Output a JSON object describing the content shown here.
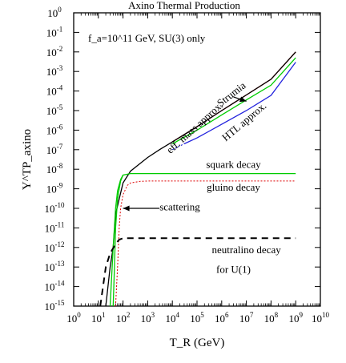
{
  "chart_data": {
    "type": "line",
    "title": "Axino Thermal Production",
    "subtitle": "f_a=10^11 GeV, SU(3) only",
    "xlabel": "T_R (GeV)",
    "ylabel": "Y^TP_axino",
    "xscale": "log",
    "yscale": "log",
    "xlim": [
      1,
      10000000000
    ],
    "ylim": [
      1e-15,
      1
    ],
    "grid": false,
    "x_tick_exponents": [
      0,
      1,
      2,
      3,
      4,
      5,
      6,
      7,
      8,
      9,
      10
    ],
    "y_tick_exponents": [
      0,
      -1,
      -2,
      -3,
      -4,
      -5,
      -6,
      -7,
      -8,
      -9,
      -10,
      -11,
      -12,
      -13,
      -14,
      -15
    ],
    "series": [
      {
        "name": "Strumia",
        "color": "#c00000",
        "style": "solid",
        "x": [
          10000,
          100000,
          1000000,
          10000000,
          100000000,
          1000000000
        ],
        "y": [
          2.5e-07,
          1.5e-06,
          1e-05,
          6.3e-05,
          0.0004,
          0.01
        ]
      },
      {
        "name": "eff. mass approx.",
        "color": "#000000",
        "style": "solid",
        "x": [
          20,
          30,
          40,
          50,
          70,
          100,
          200,
          500,
          1000,
          3000,
          10000,
          100000,
          1000000,
          10000000,
          100000000,
          1000000000
        ],
        "y": [
          1e-15,
          1e-13,
          1e-12,
          5e-11,
          3e-10,
          2e-09,
          8e-09,
          2e-08,
          4e-08,
          1e-07,
          2.5e-07,
          1.5e-06,
          1e-05,
          6.3e-05,
          0.0004,
          0.01
        ]
      },
      {
        "name": "",
        "color": "#00cc00",
        "style": "solid",
        "x": [
          10000,
          100000,
          1000000,
          10000000,
          100000000,
          1000000000
        ],
        "y": [
          2e-07,
          1e-06,
          6e-06,
          3.5e-05,
          0.0002,
          0.005
        ]
      },
      {
        "name": "HTL approx.",
        "color": "#0000cc",
        "style": "dotted",
        "x": [
          10000,
          30000
        ],
        "y": [
          1e-07,
          2e-07
        ]
      },
      {
        "name": "HTL approx.",
        "color": "#2222dd",
        "style": "solid",
        "x": [
          30000,
          100000,
          1000000,
          10000000,
          100000000,
          1000000000
        ],
        "y": [
          2e-07,
          4e-07,
          2e-06,
          1e-05,
          6e-05,
          0.003
        ]
      },
      {
        "name": "squark decay",
        "color": "#00cc00",
        "style": "solid",
        "x": [
          30,
          40,
          50,
          60,
          80,
          100,
          200,
          500,
          1000,
          10000,
          100000,
          1000000,
          10000000,
          100000000,
          1000000000
        ],
        "y": [
          1e-15,
          1e-12,
          1e-10,
          8e-10,
          3e-09,
          5e-09,
          6e-09,
          6e-09,
          6e-09,
          6e-09,
          6e-09,
          6e-09,
          6e-09,
          6e-09,
          6e-09
        ]
      },
      {
        "name": "gluino decay",
        "color": "#dd0000",
        "style": "dotted",
        "x": [
          50,
          60,
          70,
          80,
          100,
          150,
          200,
          500,
          1000,
          10000,
          100000,
          1000000,
          10000000,
          100000000,
          1000000000
        ],
        "y": [
          1e-15,
          1e-13,
          1e-11,
          1e-10,
          5e-10,
          1.5e-09,
          2e-09,
          2.4e-09,
          2.5e-09,
          2.5e-09,
          2.5e-09,
          2.5e-09,
          2.5e-09,
          2.5e-09,
          2.5e-09
        ]
      },
      {
        "name": "scattering",
        "color": "#00cc00",
        "style": "solid",
        "x": [
          40,
          45,
          50,
          60,
          70,
          80,
          100
        ],
        "y": [
          1e-15,
          1e-13,
          1e-11,
          3e-10,
          1e-09,
          2.5e-09,
          5e-09
        ]
      },
      {
        "name": "neutralino decay",
        "color": "#000000",
        "style": "dashed",
        "x": [
          12,
          20,
          30,
          50,
          70,
          100,
          200,
          1000,
          10000,
          100000,
          1000000,
          10000000,
          100000000,
          1000000000
        ],
        "y": [
          1e-15,
          1e-13,
          5e-13,
          1.5e-12,
          2.5e-12,
          3e-12,
          3e-12,
          3e-12,
          3e-12,
          3e-12,
          3e-12,
          3e-12,
          3e-12,
          3e-12
        ]
      }
    ],
    "annotations": [
      {
        "text": "Strumia",
        "rotation": -38,
        "x": 3000000,
        "y": 5e-05
      },
      {
        "text": "eff. mass approx.",
        "rotation": -42,
        "x": 100000,
        "y": 1e-06
      },
      {
        "text": "HTL approx.",
        "rotation": -40,
        "x": 10000000,
        "y": 2e-06
      },
      {
        "text": "squark decay",
        "rotation": 0,
        "x": 3000000,
        "y": 1.2e-08
      },
      {
        "text": "gluino decay",
        "rotation": 0,
        "x": 3000000,
        "y": 8e-10
      },
      {
        "text": "scattering",
        "rotation": 0,
        "x": 20000,
        "y": 8e-11
      },
      {
        "text": "neutralino decay",
        "rotation": 0,
        "x": 10000000,
        "y": 5e-13
      },
      {
        "text": "for U(1)",
        "rotation": 0,
        "x": 3000000,
        "y": 5e-14
      }
    ],
    "arrows": [
      {
        "target": "Strumia",
        "from": [
          3000000,
          5e-05
        ],
        "to": [
          10000000,
          3e-05
        ]
      },
      {
        "target": "scattering",
        "from": [
          3000,
          1e-10
        ],
        "to": [
          100,
          1e-10
        ]
      }
    ]
  }
}
